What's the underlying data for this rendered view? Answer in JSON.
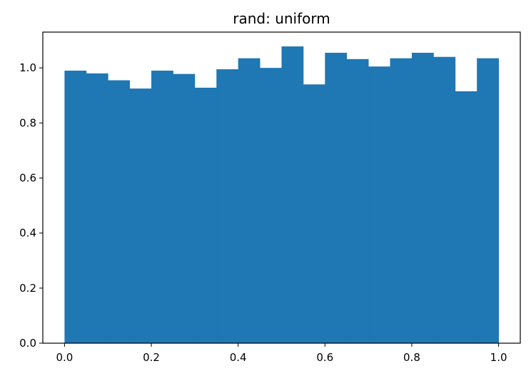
{
  "chart_data": {
    "type": "bar",
    "title": "rand: uniform",
    "xlabel": "",
    "ylabel": "",
    "xlim": [
      -0.05,
      1.05
    ],
    "ylim": [
      0,
      1.13
    ],
    "xticks": [
      0.0,
      0.2,
      0.4,
      0.6,
      0.8,
      1.0
    ],
    "xtick_labels": [
      "0.0",
      "0.2",
      "0.4",
      "0.6",
      "0.8",
      "1.0"
    ],
    "yticks": [
      0.0,
      0.2,
      0.4,
      0.6,
      0.8,
      1.0
    ],
    "ytick_labels": [
      "0.0",
      "0.2",
      "0.4",
      "0.6",
      "0.8",
      "1.0"
    ],
    "bin_edges": [
      0.0,
      0.05,
      0.1,
      0.15,
      0.2,
      0.25,
      0.3,
      0.35,
      0.4,
      0.45,
      0.5,
      0.55,
      0.6,
      0.65,
      0.7,
      0.75,
      0.8,
      0.85,
      0.9,
      0.95,
      1.0
    ],
    "values": [
      0.99,
      0.98,
      0.955,
      0.925,
      0.99,
      0.978,
      0.928,
      0.995,
      1.035,
      1.0,
      1.078,
      0.94,
      1.055,
      1.032,
      1.005,
      1.035,
      1.055,
      1.04,
      0.915,
      1.035
    ],
    "grid": false,
    "color": "#1f77b4"
  }
}
